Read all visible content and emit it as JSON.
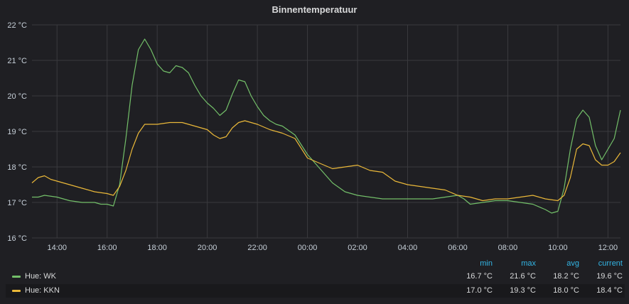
{
  "panel": {
    "title": "Binnentemperatuur"
  },
  "legend": {
    "headers": {
      "min": "min",
      "max": "max",
      "avg": "avg",
      "current": "current"
    },
    "rows": [
      {
        "name": "Hue: WK",
        "min": "16.7 °C",
        "max": "21.6 °C",
        "avg": "18.2 °C",
        "current": "19.6 °C"
      },
      {
        "name": "Hue: KKN",
        "min": "17.0 °C",
        "max": "19.3 °C",
        "avg": "18.0 °C",
        "current": "18.4 °C"
      }
    ]
  },
  "chart_data": {
    "type": "line",
    "title": "Binnentemperatuur",
    "y_unit": "°C",
    "ylim": [
      16,
      22
    ],
    "y_ticks": [
      "16 °C",
      "17 °C",
      "18 °C",
      "19 °C",
      "20 °C",
      "21 °C",
      "22 °C"
    ],
    "x_range": [
      "13:00",
      "12:30"
    ],
    "x_ticks": [
      "14:00",
      "16:00",
      "18:00",
      "20:00",
      "22:00",
      "00:00",
      "02:00",
      "04:00",
      "06:00",
      "08:00",
      "10:00",
      "12:00"
    ],
    "grid": true,
    "legend_position": "bottom",
    "series": [
      {
        "name": "Hue: WK",
        "color": "#73bf69",
        "points": [
          [
            "13:00",
            17.15
          ],
          [
            "13:15",
            17.15
          ],
          [
            "13:30",
            17.2
          ],
          [
            "14:00",
            17.15
          ],
          [
            "14:30",
            17.05
          ],
          [
            "15:00",
            17.0
          ],
          [
            "15:30",
            17.0
          ],
          [
            "15:45",
            16.95
          ],
          [
            "16:00",
            16.95
          ],
          [
            "16:15",
            16.9
          ],
          [
            "16:30",
            17.5
          ],
          [
            "16:45",
            18.8
          ],
          [
            "17:00",
            20.3
          ],
          [
            "17:15",
            21.3
          ],
          [
            "17:30",
            21.6
          ],
          [
            "17:45",
            21.3
          ],
          [
            "18:00",
            20.9
          ],
          [
            "18:15",
            20.7
          ],
          [
            "18:30",
            20.65
          ],
          [
            "18:45",
            20.85
          ],
          [
            "19:00",
            20.8
          ],
          [
            "19:15",
            20.65
          ],
          [
            "19:30",
            20.3
          ],
          [
            "19:45",
            20.0
          ],
          [
            "20:00",
            19.8
          ],
          [
            "20:15",
            19.65
          ],
          [
            "20:30",
            19.45
          ],
          [
            "20:45",
            19.6
          ],
          [
            "21:00",
            20.05
          ],
          [
            "21:15",
            20.45
          ],
          [
            "21:30",
            20.4
          ],
          [
            "21:45",
            20.0
          ],
          [
            "22:00",
            19.7
          ],
          [
            "22:15",
            19.45
          ],
          [
            "22:30",
            19.3
          ],
          [
            "22:45",
            19.2
          ],
          [
            "23:00",
            19.15
          ],
          [
            "23:30",
            18.9
          ],
          [
            "00:00",
            18.35
          ],
          [
            "00:30",
            17.95
          ],
          [
            "01:00",
            17.55
          ],
          [
            "01:30",
            17.3
          ],
          [
            "02:00",
            17.2
          ],
          [
            "03:00",
            17.1
          ],
          [
            "04:00",
            17.1
          ],
          [
            "05:00",
            17.1
          ],
          [
            "05:30",
            17.15
          ],
          [
            "06:00",
            17.2
          ],
          [
            "06:15",
            17.1
          ],
          [
            "06:30",
            16.95
          ],
          [
            "07:00",
            17.0
          ],
          [
            "07:30",
            17.05
          ],
          [
            "08:00",
            17.05
          ],
          [
            "08:30",
            17.0
          ],
          [
            "09:00",
            16.95
          ],
          [
            "09:30",
            16.8
          ],
          [
            "09:45",
            16.7
          ],
          [
            "10:00",
            16.75
          ],
          [
            "10:15",
            17.4
          ],
          [
            "10:30",
            18.5
          ],
          [
            "10:45",
            19.35
          ],
          [
            "11:00",
            19.6
          ],
          [
            "11:15",
            19.4
          ],
          [
            "11:30",
            18.6
          ],
          [
            "11:45",
            18.2
          ],
          [
            "12:00",
            18.5
          ],
          [
            "12:15",
            18.8
          ],
          [
            "12:30",
            19.6
          ]
        ]
      },
      {
        "name": "Hue: KKN",
        "color": "#eab839",
        "points": [
          [
            "13:00",
            17.55
          ],
          [
            "13:15",
            17.7
          ],
          [
            "13:30",
            17.75
          ],
          [
            "13:45",
            17.65
          ],
          [
            "14:00",
            17.6
          ],
          [
            "14:30",
            17.5
          ],
          [
            "15:00",
            17.4
          ],
          [
            "15:30",
            17.3
          ],
          [
            "16:00",
            17.25
          ],
          [
            "16:15",
            17.2
          ],
          [
            "16:30",
            17.45
          ],
          [
            "16:45",
            17.9
          ],
          [
            "17:00",
            18.5
          ],
          [
            "17:15",
            18.95
          ],
          [
            "17:30",
            19.2
          ],
          [
            "18:00",
            19.2
          ],
          [
            "18:30",
            19.25
          ],
          [
            "19:00",
            19.25
          ],
          [
            "19:30",
            19.15
          ],
          [
            "20:00",
            19.05
          ],
          [
            "20:15",
            18.9
          ],
          [
            "20:30",
            18.8
          ],
          [
            "20:45",
            18.85
          ],
          [
            "21:00",
            19.1
          ],
          [
            "21:15",
            19.25
          ],
          [
            "21:30",
            19.3
          ],
          [
            "22:00",
            19.2
          ],
          [
            "22:30",
            19.05
          ],
          [
            "23:00",
            18.95
          ],
          [
            "23:30",
            18.8
          ],
          [
            "00:00",
            18.25
          ],
          [
            "00:30",
            18.1
          ],
          [
            "01:00",
            17.95
          ],
          [
            "01:30",
            18.0
          ],
          [
            "02:00",
            18.05
          ],
          [
            "02:30",
            17.9
          ],
          [
            "03:00",
            17.85
          ],
          [
            "03:30",
            17.6
          ],
          [
            "04:00",
            17.5
          ],
          [
            "04:30",
            17.45
          ],
          [
            "05:00",
            17.4
          ],
          [
            "05:30",
            17.35
          ],
          [
            "06:00",
            17.2
          ],
          [
            "06:30",
            17.15
          ],
          [
            "07:00",
            17.05
          ],
          [
            "07:30",
            17.1
          ],
          [
            "08:00",
            17.1
          ],
          [
            "08:30",
            17.15
          ],
          [
            "09:00",
            17.2
          ],
          [
            "09:30",
            17.1
          ],
          [
            "10:00",
            17.05
          ],
          [
            "10:15",
            17.2
          ],
          [
            "10:30",
            17.7
          ],
          [
            "10:45",
            18.5
          ],
          [
            "11:00",
            18.65
          ],
          [
            "11:15",
            18.6
          ],
          [
            "11:30",
            18.2
          ],
          [
            "11:45",
            18.05
          ],
          [
            "12:00",
            18.05
          ],
          [
            "12:15",
            18.15
          ],
          [
            "12:30",
            18.4
          ]
        ]
      }
    ]
  }
}
